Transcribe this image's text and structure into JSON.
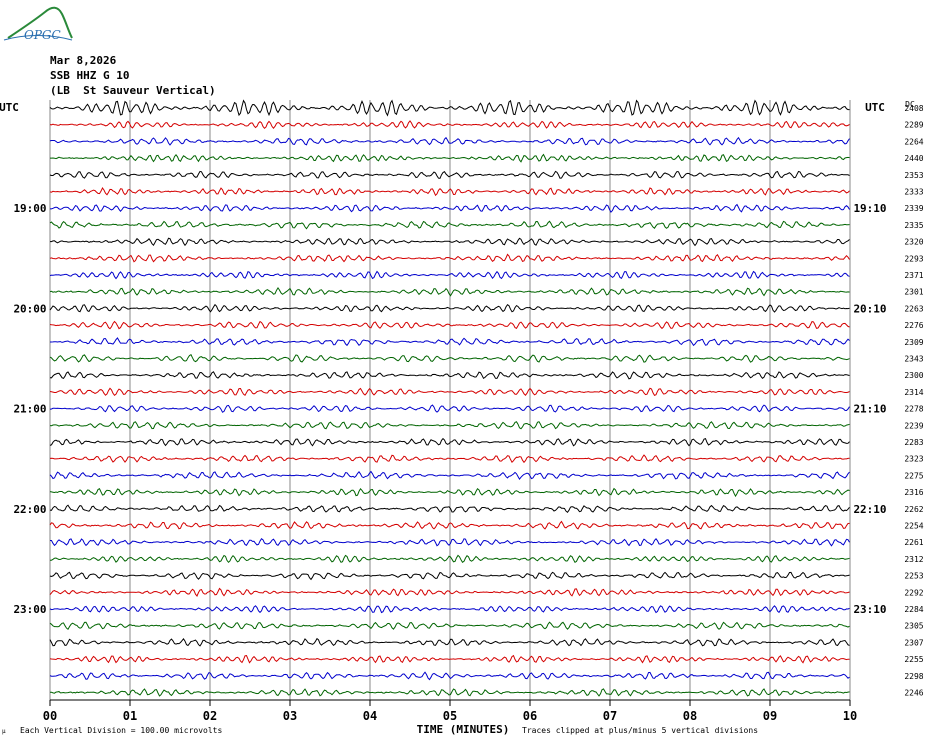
{
  "header": {
    "date": "Mar 8,2026",
    "station": "SSB HHZ G 10",
    "location": "(LB  St Sauveur Vertical)",
    "logo": "OPGC"
  },
  "chart_data": {
    "type": "line",
    "title": "SSB HHZ G 10",
    "xlabel": "TIME (MINUTES)",
    "x_ticks": [
      "00",
      "01",
      "02",
      "03",
      "04",
      "05",
      "06",
      "07",
      "08",
      "09",
      "10"
    ],
    "xlim": [
      0,
      10
    ],
    "left_axis_label": "UTC",
    "right_axis_label": "UTC",
    "right_corner_label": "DC",
    "left_time_labels": [
      {
        "row": 6,
        "label": "19:00"
      },
      {
        "row": 12,
        "label": "20:00"
      },
      {
        "row": 18,
        "label": "21:00"
      },
      {
        "row": 24,
        "label": "22:00"
      },
      {
        "row": 30,
        "label": "23:00"
      }
    ],
    "right_time_labels": [
      {
        "row": 6,
        "label": "19:10"
      },
      {
        "row": 12,
        "label": "20:10"
      },
      {
        "row": 18,
        "label": "21:10"
      },
      {
        "row": 24,
        "label": "22:10"
      },
      {
        "row": 30,
        "label": "23:10"
      }
    ],
    "trace_colors": [
      "#000000",
      "#d40000",
      "#0000cc",
      "#006400"
    ],
    "dc_values": [
      2408,
      2289,
      2264,
      2440,
      2353,
      2333,
      2339,
      2335,
      2320,
      2293,
      2371,
      2301,
      2263,
      2276,
      2309,
      2343,
      2300,
      2314,
      2278,
      2239,
      2283,
      2323,
      2275,
      2316,
      2262,
      2254,
      2261,
      2312,
      2253,
      2292,
      2284,
      2305,
      2307,
      2255,
      2298,
      2246
    ],
    "footer_scale": "Each Vertical Division =  100.00 microvolts",
    "footer_clip": "Traces clipped at plus/minus 5 vertical divisions",
    "grid": true
  }
}
